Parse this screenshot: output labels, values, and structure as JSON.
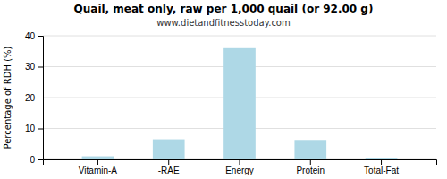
{
  "chart_data": {
    "type": "bar",
    "title": "Quail, meat only, raw per 1,000 quail (or 92.00 g)",
    "subtitle": "www.dietandfitnesstoday.com",
    "ylabel": "Percentage of RDH (%)",
    "categories": [
      "Vitamin-A",
      "-RAE",
      "Energy",
      "Protein",
      "Total-Fat"
    ],
    "values": [
      1.0,
      6.5,
      36.0,
      6.3,
      0.3
    ],
    "color": "#aed8e6",
    "ylim": [
      0,
      40
    ],
    "yticks": [
      0,
      10,
      20,
      30,
      40
    ],
    "grid": true
  }
}
